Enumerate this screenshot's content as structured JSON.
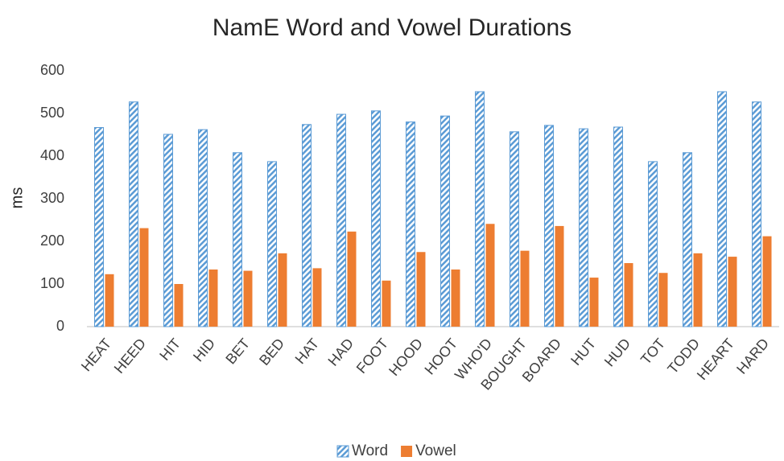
{
  "chart_data": {
    "type": "bar",
    "title": "NamE Word and Vowel Durations",
    "y_label": "ms",
    "categories": [
      "HEAT",
      "HEED",
      "HIT",
      "HID",
      "BET",
      "BED",
      "HAT",
      "HAD",
      "FOOT",
      "HOOD",
      "HOOT",
      "WHO'D",
      "BOUGHT",
      "BOARD",
      "HUT",
      "HUD",
      "TOT",
      "TODD",
      "HEART",
      "HARD"
    ],
    "series": [
      {
        "name": "Word",
        "color": "#5b9bd5",
        "pattern": "diagonal-hatch",
        "values": [
          467,
          527,
          451,
          462,
          408,
          387,
          474,
          498,
          506,
          480,
          494,
          551,
          457,
          472,
          464,
          468,
          387,
          408,
          551,
          527
        ]
      },
      {
        "name": "Vowel",
        "color": "#ed7d31",
        "values": [
          123,
          231,
          100,
          134,
          131,
          172,
          137,
          223,
          108,
          175,
          134,
          241,
          178,
          236,
          115,
          149,
          126,
          172,
          164,
          212
        ]
      }
    ],
    "ylim": [
      0,
      600
    ],
    "yticks": [
      0,
      100,
      200,
      300,
      400,
      500,
      600
    ],
    "grid": false,
    "legend": "bottom"
  }
}
